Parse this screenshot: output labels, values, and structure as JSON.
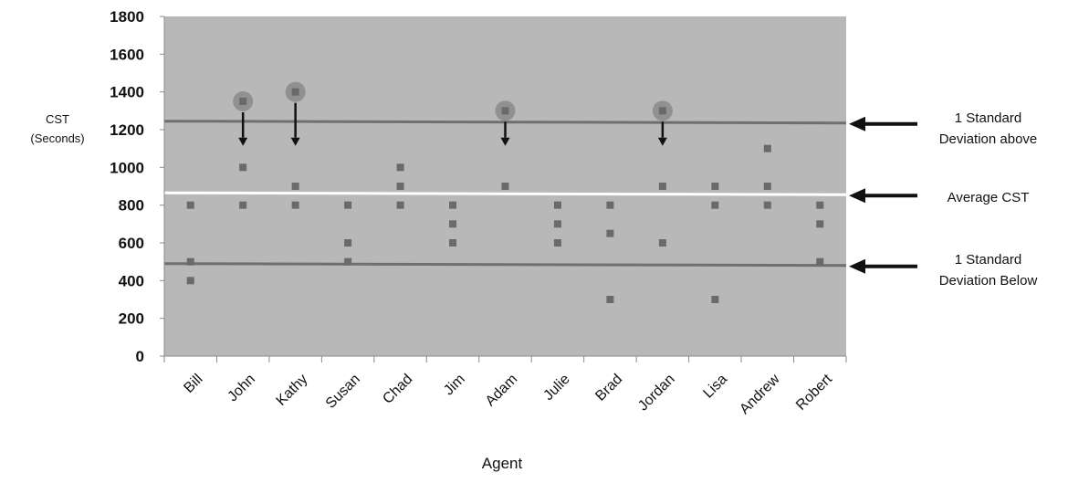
{
  "chart_data": {
    "type": "scatter",
    "title": "",
    "ylabel_line1": "CST",
    "ylabel_line2": "(Seconds)",
    "xlabel": "Agent",
    "ylim": [
      0,
      1800
    ],
    "yticks": [
      0,
      200,
      400,
      600,
      800,
      1000,
      1200,
      1400,
      1600,
      1800
    ],
    "grid": false,
    "categories": [
      "Bill",
      "John",
      "Kathy",
      "Susan",
      "Chad",
      "Jim",
      "Adam",
      "Julie",
      "Brad",
      "Jordan",
      "Lisa",
      "Andrew",
      "Robert"
    ],
    "points": [
      {
        "agent": "Bill",
        "y": 800
      },
      {
        "agent": "Bill",
        "y": 500
      },
      {
        "agent": "Bill",
        "y": 400
      },
      {
        "agent": "John",
        "y": 1350
      },
      {
        "agent": "John",
        "y": 1000
      },
      {
        "agent": "John",
        "y": 800
      },
      {
        "agent": "Kathy",
        "y": 1400
      },
      {
        "agent": "Kathy",
        "y": 900
      },
      {
        "agent": "Kathy",
        "y": 800
      },
      {
        "agent": "Susan",
        "y": 800
      },
      {
        "agent": "Susan",
        "y": 600
      },
      {
        "agent": "Susan",
        "y": 500
      },
      {
        "agent": "Chad",
        "y": 1000
      },
      {
        "agent": "Chad",
        "y": 900
      },
      {
        "agent": "Chad",
        "y": 800
      },
      {
        "agent": "Jim",
        "y": 800
      },
      {
        "agent": "Jim",
        "y": 700
      },
      {
        "agent": "Jim",
        "y": 600
      },
      {
        "agent": "Adam",
        "y": 1300
      },
      {
        "agent": "Adam",
        "y": 900
      },
      {
        "agent": "Julie",
        "y": 800
      },
      {
        "agent": "Julie",
        "y": 700
      },
      {
        "agent": "Julie",
        "y": 600
      },
      {
        "agent": "Brad",
        "y": 800
      },
      {
        "agent": "Brad",
        "y": 650
      },
      {
        "agent": "Brad",
        "y": 300
      },
      {
        "agent": "Jordan",
        "y": 1300
      },
      {
        "agent": "Jordan",
        "y": 900
      },
      {
        "agent": "Jordan",
        "y": 600
      },
      {
        "agent": "Lisa",
        "y": 900
      },
      {
        "agent": "Lisa",
        "y": 800
      },
      {
        "agent": "Lisa",
        "y": 300
      },
      {
        "agent": "Andrew",
        "y": 1100
      },
      {
        "agent": "Andrew",
        "y": 900
      },
      {
        "agent": "Andrew",
        "y": 800
      },
      {
        "agent": "Robert",
        "y": 800
      },
      {
        "agent": "Robert",
        "y": 700
      },
      {
        "agent": "Robert",
        "y": 500
      }
    ],
    "highlighted": [
      {
        "agent": "John",
        "y": 1350
      },
      {
        "agent": "Kathy",
        "y": 1400
      },
      {
        "agent": "Adam",
        "y": 1300
      },
      {
        "agent": "Jordan",
        "y": 1300
      }
    ],
    "reference_lines": [
      {
        "key": "upper",
        "y": 1245,
        "color": "#6f6f6f"
      },
      {
        "key": "average",
        "y": 865,
        "color": "#ffffff"
      },
      {
        "key": "lower",
        "y": 490,
        "color": "#6f6f6f"
      }
    ],
    "plot_color": "#b8b8b8",
    "marker_color": "#6a6a6a",
    "highlight_color": "#8a8a8a"
  },
  "annotations": {
    "upper_line1": "1 Standard",
    "upper_line2": "Deviation above",
    "average": "Average CST",
    "lower_line1": "1 Standard",
    "lower_line2": "Deviation Below"
  }
}
